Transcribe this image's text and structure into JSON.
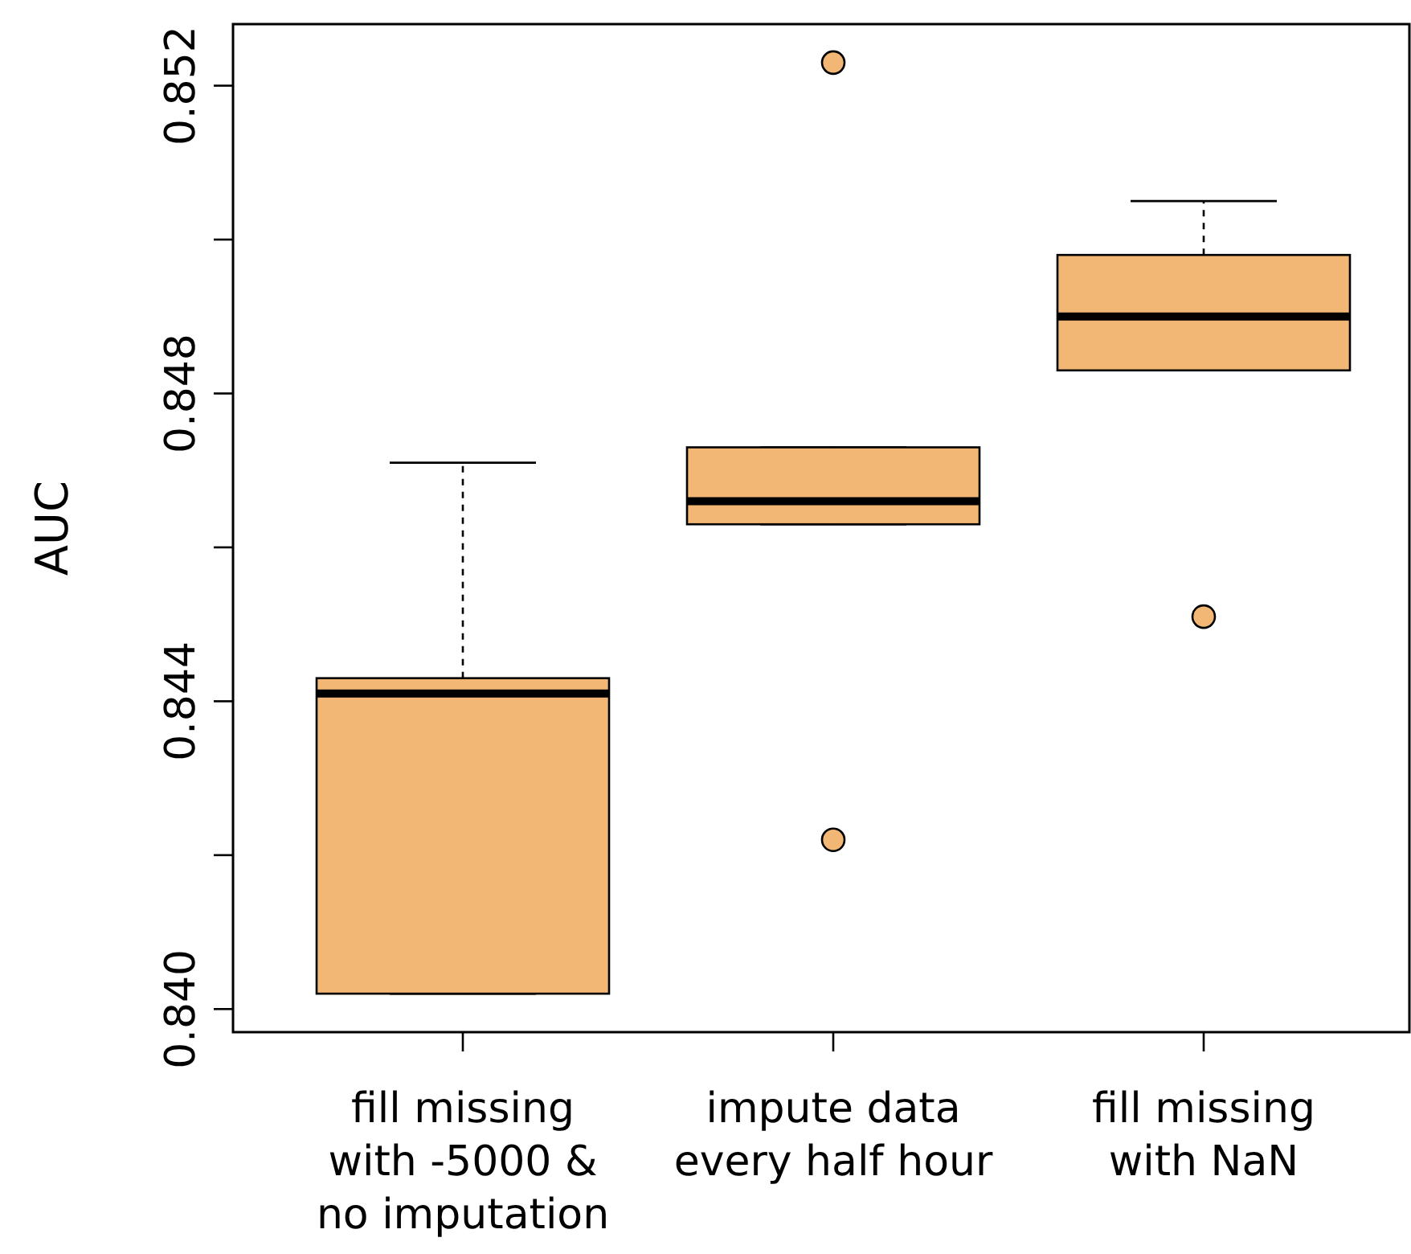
{
  "chart_data": {
    "type": "box",
    "ylabel": "AUC",
    "categories": [
      "fill missing\nwith -5000 &\nno imputation",
      "impute data\nevery half hour",
      "fill missing\nwith NaN"
    ],
    "color": "#f2b775",
    "boxes": [
      {
        "low": 0.8402,
        "q1": 0.8402,
        "median": 0.8441,
        "q3": 0.8443,
        "high": 0.8471
      },
      {
        "low": 0.8463,
        "q1": 0.8463,
        "median": 0.8466,
        "q3": 0.8473,
        "high": 0.8473,
        "outliers": [
          0.8523,
          0.8422
        ]
      },
      {
        "low": 0.8483,
        "q1": 0.8483,
        "median": 0.849,
        "q3": 0.8498,
        "high": 0.8505,
        "outliers": [
          0.8451
        ]
      }
    ],
    "ylim": [
      0.8397,
      0.8528
    ],
    "yticks": [
      {
        "value": 0.84,
        "label": "0.840"
      },
      {
        "value": 0.842,
        "label": null
      },
      0.844,
      {
        "value": 0.846,
        "label": null
      },
      0.848,
      {
        "value": 0.85,
        "label": null
      },
      0.852
    ]
  }
}
